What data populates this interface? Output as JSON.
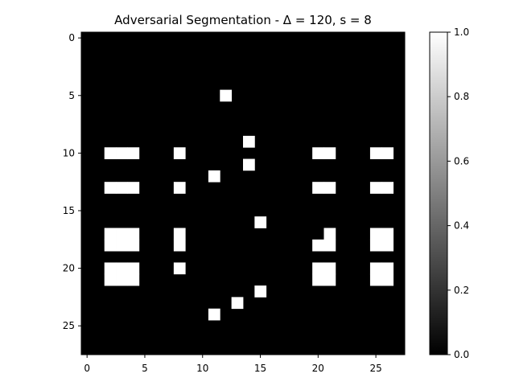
{
  "chart_data": {
    "type": "heatmap",
    "title": "Adversarial Segmentation - Δ = 120, s = 8",
    "xlabel": "",
    "ylabel": "",
    "colormap": "gray",
    "grid": false,
    "rows": 28,
    "cols": 28,
    "x_ticks": [
      0,
      5,
      10,
      15,
      20,
      25
    ],
    "y_ticks": [
      0,
      5,
      10,
      15,
      20,
      25
    ],
    "colorbar": {
      "min": 0.0,
      "max": 1.0,
      "ticks": [
        "0.0",
        "0.2",
        "0.4",
        "0.6",
        "0.8",
        "1.0"
      ]
    },
    "background_value": 0,
    "white_pixels": [
      [
        5,
        12
      ],
      [
        9,
        14
      ],
      [
        10,
        2
      ],
      [
        10,
        3
      ],
      [
        10,
        4
      ],
      [
        10,
        8
      ],
      [
        10,
        20
      ],
      [
        10,
        21
      ],
      [
        10,
        25
      ],
      [
        10,
        26
      ],
      [
        11,
        14
      ],
      [
        12,
        11
      ],
      [
        13,
        2
      ],
      [
        13,
        3
      ],
      [
        13,
        4
      ],
      [
        13,
        8
      ],
      [
        13,
        20
      ],
      [
        13,
        21
      ],
      [
        13,
        25
      ],
      [
        13,
        26
      ],
      [
        16,
        15
      ],
      [
        17,
        2
      ],
      [
        17,
        3
      ],
      [
        17,
        4
      ],
      [
        17,
        8
      ],
      [
        17,
        21
      ],
      [
        17,
        25
      ],
      [
        17,
        26
      ],
      [
        18,
        2
      ],
      [
        18,
        3
      ],
      [
        18,
        4
      ],
      [
        18,
        8
      ],
      [
        18,
        20
      ],
      [
        18,
        21
      ],
      [
        18,
        25
      ],
      [
        18,
        26
      ],
      [
        20,
        2
      ],
      [
        20,
        3
      ],
      [
        20,
        4
      ],
      [
        20,
        8
      ],
      [
        20,
        20
      ],
      [
        20,
        21
      ],
      [
        20,
        25
      ],
      [
        20,
        26
      ],
      [
        21,
        2
      ],
      [
        21,
        3
      ],
      [
        21,
        4
      ],
      [
        21,
        20
      ],
      [
        21,
        21
      ],
      [
        21,
        25
      ],
      [
        21,
        26
      ],
      [
        22,
        15
      ],
      [
        23,
        13
      ],
      [
        24,
        11
      ]
    ]
  }
}
